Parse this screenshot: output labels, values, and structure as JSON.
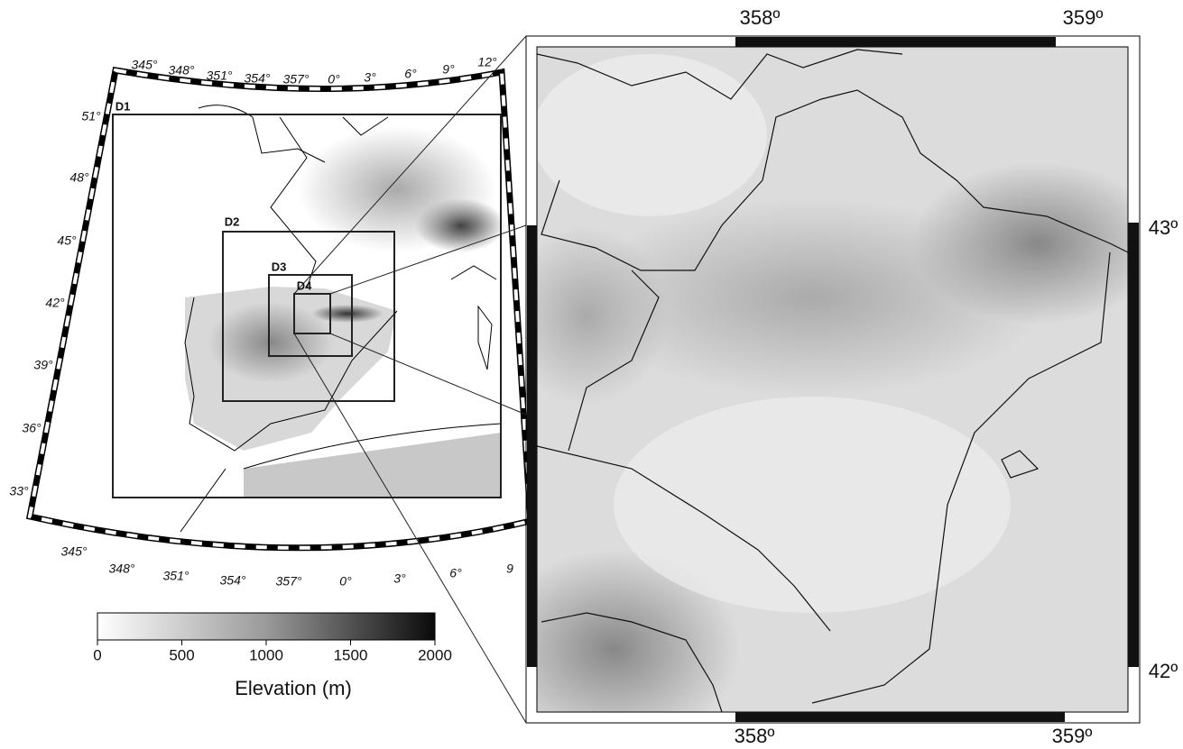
{
  "left_map": {
    "top_lon_labels": [
      "345°",
      "348°",
      "351°",
      "354°",
      "357°",
      "0°",
      "3°",
      "6°",
      "9°",
      "12°"
    ],
    "bottom_lon_labels": [
      "345°",
      "348°",
      "351°",
      "354°",
      "357°",
      "0°",
      "3°",
      "6°",
      "9"
    ],
    "lat_labels": [
      "51°",
      "48°",
      "45°",
      "42°",
      "39°",
      "36°",
      "33°"
    ],
    "domains": [
      "D1",
      "D2",
      "D3",
      "D4"
    ]
  },
  "colorbar": {
    "ticks": [
      0,
      500,
      1000,
      1500,
      2000
    ],
    "label": "Elevation (m)"
  },
  "right_map": {
    "top_lon_labels": [
      "358º",
      "359º"
    ],
    "bottom_lon_labels": [
      "358º",
      "359º"
    ],
    "lat_labels": [
      "43º",
      "42º"
    ]
  }
}
